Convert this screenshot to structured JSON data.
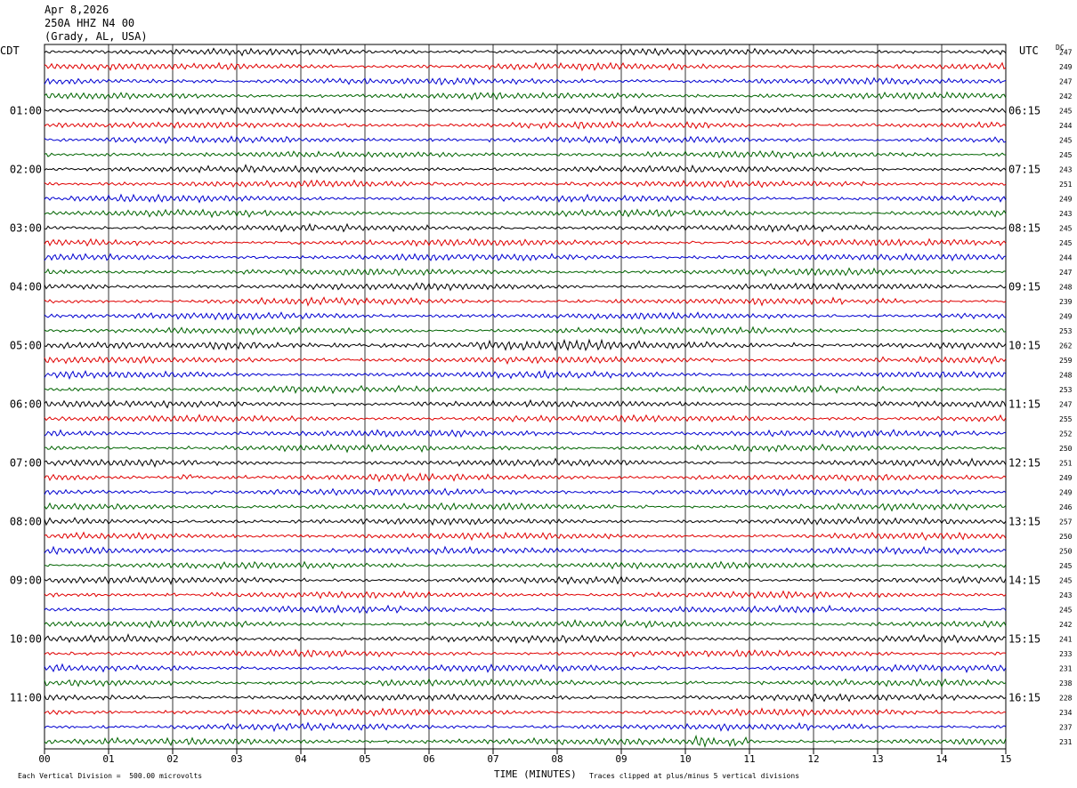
{
  "header": {
    "date": "Apr 8,2026",
    "station": "250A HHZ N4 00",
    "location": "(Grady, AL, USA)"
  },
  "left_timezone": "CDT",
  "right_timezone": "UTC",
  "dc_label": "DC",
  "footer": {
    "scale_note": "Each Vertical Division =  500.00 microvolts",
    "clip_note": "Traces clipped at plus/minus 5 vertical divisions",
    "xlabel": "TIME (MINUTES)"
  },
  "colors": {
    "trace_cycle": [
      "#000000",
      "#e00000",
      "#0000d0",
      "#006400"
    ]
  },
  "chart_data": {
    "type": "line",
    "x_range_minutes": [
      0,
      15
    ],
    "x_tick_labels": [
      "00",
      "01",
      "02",
      "03",
      "04",
      "05",
      "06",
      "07",
      "08",
      "09",
      "10",
      "11",
      "12",
      "13",
      "14",
      "15"
    ],
    "rows_per_hour": 4,
    "left_hour_labels": [
      "01:00",
      "02:00",
      "03:00",
      "04:00",
      "05:00",
      "06:00",
      "07:00",
      "08:00",
      "09:00",
      "10:00",
      "11:00"
    ],
    "right_hour_labels": [
      "06:15",
      "07:15",
      "08:15",
      "09:15",
      "10:15",
      "11:15",
      "12:15",
      "13:15",
      "14:15",
      "15:15",
      "16:15"
    ],
    "dc_values": [
      247,
      249,
      247,
      242,
      245,
      244,
      245,
      245,
      243,
      251,
      249,
      243,
      245,
      245,
      244,
      247,
      248,
      239,
      249,
      253,
      262,
      259,
      248,
      253,
      247,
      255,
      252,
      250,
      251,
      249,
      249,
      246,
      257,
      250,
      250,
      245,
      245,
      243,
      245,
      242,
      241,
      233,
      231,
      238,
      228,
      234,
      237,
      231
    ],
    "grid": "vertical lines each minute"
  }
}
